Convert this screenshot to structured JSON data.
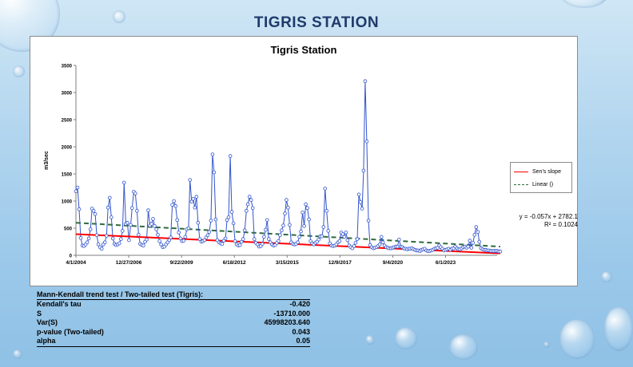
{
  "slide_title": "TIGRIS STATION",
  "chart_data": {
    "type": "line",
    "title": "Tigris Station",
    "ylabel": "m3/sec",
    "xlabel": "",
    "ylim": [
      0,
      3500
    ],
    "y_ticks": [
      "0",
      "500",
      "1000",
      "1500",
      "2000",
      "2500",
      "3000",
      "3500"
    ],
    "x_tick_labels": [
      "4/1/2004",
      "12/27/2006",
      "9/22/2009",
      "6/18/2012",
      "3/15/2015",
      "12/9/2017",
      "9/4/2020",
      "6/1/2023"
    ],
    "x_start": "4/1/2004",
    "x_end": "2/1/2026",
    "series": [
      {
        "name": "",
        "color": "#3355cc",
        "values": [
          1180,
          1250,
          850,
          320,
          180,
          170,
          200,
          240,
          310,
          480,
          860,
          820,
          760,
          370,
          200,
          150,
          120,
          200,
          240,
          360,
          880,
          1060,
          700,
          310,
          210,
          190,
          200,
          220,
          300,
          450,
          1340,
          580,
          600,
          280,
          560,
          870,
          1170,
          1140,
          820,
          380,
          210,
          190,
          180,
          250,
          290,
          830,
          550,
          580,
          670,
          540,
          480,
          380,
          260,
          200,
          150,
          160,
          200,
          240,
          280,
          330,
          930,
          1000,
          910,
          650,
          420,
          310,
          260,
          270,
          340,
          480,
          500,
          1390,
          990,
          1040,
          880,
          1080,
          600,
          300,
          250,
          260,
          280,
          330,
          370,
          430,
          640,
          1860,
          1530,
          660,
          280,
          240,
          220,
          210,
          270,
          310,
          650,
          700,
          1830,
          800,
          590,
          260,
          200,
          180,
          190,
          250,
          300,
          460,
          820,
          940,
          1080,
          1020,
          870,
          300,
          230,
          200,
          160,
          170,
          210,
          340,
          470,
          650,
          300,
          240,
          200,
          180,
          190,
          230,
          260,
          370,
          460,
          550,
          770,
          1020,
          880,
          560,
          240,
          210,
          200,
          210,
          240,
          340,
          440,
          790,
          540,
          940,
          870,
          660,
          260,
          220,
          200,
          230,
          250,
          290,
          350,
          350,
          520,
          1230,
          820,
          450,
          220,
          180,
          170,
          180,
          200,
          240,
          260,
          420,
          390,
          340,
          420,
          280,
          180,
          150,
          130,
          170,
          230,
          300,
          1120,
          980,
          860,
          1560,
          3210,
          2100,
          640,
          190,
          150,
          130,
          140,
          150,
          170,
          200,
          340,
          240,
          180,
          150,
          140,
          130,
          130,
          140,
          150,
          160,
          160,
          290,
          160,
          150,
          130,
          120,
          110,
          120,
          120,
          130,
          110,
          100,
          90,
          90,
          80,
          100,
          110,
          120,
          90,
          80,
          80,
          90,
          100,
          120,
          130,
          140,
          180,
          150,
          120,
          90,
          100,
          110,
          120,
          100,
          120,
          130,
          160,
          130,
          110,
          110,
          130,
          150,
          160,
          140,
          160,
          270,
          140,
          230,
          380,
          520,
          430,
          250,
          130,
          110,
          100,
          100,
          90,
          90,
          80,
          80,
          80,
          80,
          80,
          70,
          70
        ]
      }
    ],
    "sens_slope": {
      "name": "Sen's slope",
      "color": "#ff0000",
      "start": 390,
      "end": 35
    },
    "linear_fit": {
      "name": "Linear ()",
      "color": "#2e6b3c",
      "start": 600,
      "end": 160
    },
    "equation": "y = -0.057x + 2782.1",
    "r_squared": "R² = 0.1024",
    "grid": false,
    "legend_position": "right"
  },
  "stats": {
    "caption": "Mann-Kendall trend test / Two-tailed test (Tigris):",
    "rows": [
      {
        "label": "Kendall's tau",
        "value": "-0.420"
      },
      {
        "label": "S",
        "value": "-13710.000"
      },
      {
        "label": "Var(S)",
        "value": "45998203.640"
      },
      {
        "label": "p-value (Two-tailed)",
        "value": "0.043"
      },
      {
        "label": "alpha",
        "value": "0.05"
      }
    ]
  }
}
